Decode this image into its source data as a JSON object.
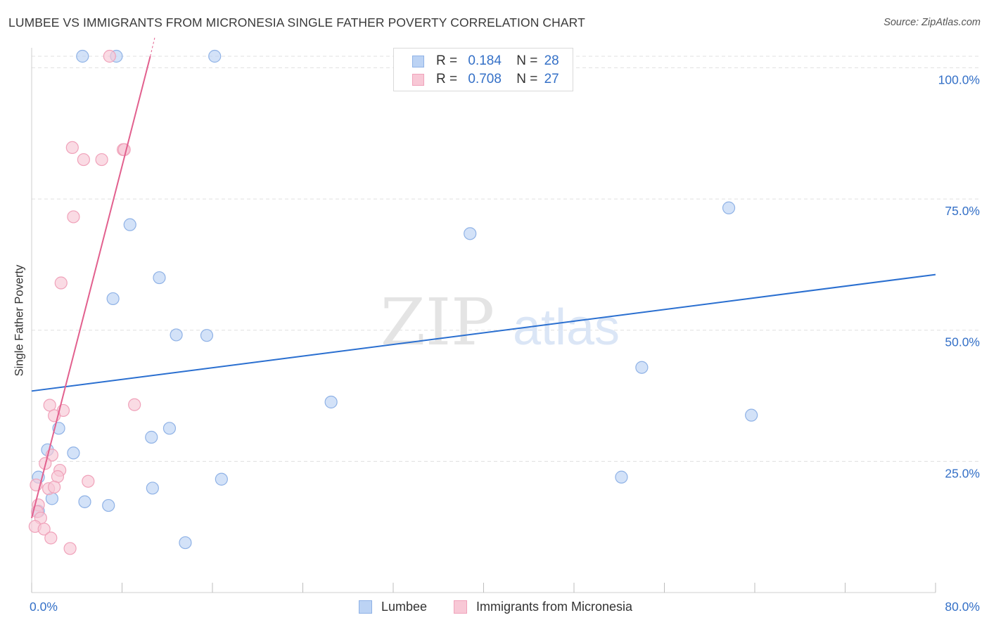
{
  "title": "LUMBEE VS IMMIGRANTS FROM MICRONESIA SINGLE FATHER POVERTY CORRELATION CHART",
  "source": "Source: ZipAtlas.com",
  "watermark": {
    "zip": "ZIP",
    "atlas": "atlas"
  },
  "legend": {
    "r_label": "R =",
    "n_label": "N =",
    "rows": [
      {
        "name": "Lumbee",
        "r": "0.184",
        "n": "28"
      },
      {
        "name": "Immigrants from Micronesia",
        "r": "0.708",
        "n": "27"
      }
    ]
  },
  "colors": {
    "lumbee_fill": "#bcd3f4",
    "lumbee_stroke": "#8fb2e6",
    "lumbee_line": "#2a6fd0",
    "micronesia_fill": "#f8c8d6",
    "micronesia_stroke": "#f0a2ba",
    "micronesia_line": "#e2608e",
    "tick_label": "#3470c7",
    "grid": "#e0e0e0"
  },
  "chart_data": {
    "type": "scatter",
    "title": "LUMBEE VS IMMIGRANTS FROM MICRONESIA SINGLE FATHER POVERTY CORRELATION CHART",
    "xlabel": "",
    "ylabel": "Single Father Poverty",
    "xlim": [
      0,
      80
    ],
    "ylim": [
      0,
      102
    ],
    "x_tick_labels": [
      "0.0%",
      "80.0%"
    ],
    "y_ticks": [
      25,
      50,
      75,
      100
    ],
    "y_tick_labels": [
      "25.0%",
      "50.0%",
      "75.0%",
      "100.0%"
    ],
    "grid": "horizontal dashed",
    "legend_placement": "top-center and bottom",
    "series": [
      {
        "name": "Lumbee",
        "r": 0.184,
        "n": 28,
        "points": [
          [
            4.5,
            102.2
          ],
          [
            7.5,
            102.2
          ],
          [
            16.2,
            102.2
          ],
          [
            42.0,
            102.0
          ],
          [
            8.7,
            70.1
          ],
          [
            38.8,
            68.4
          ],
          [
            61.7,
            73.3
          ],
          [
            11.3,
            60.0
          ],
          [
            7.2,
            56.0
          ],
          [
            12.8,
            49.1
          ],
          [
            15.5,
            49.0
          ],
          [
            54.0,
            42.9
          ],
          [
            26.5,
            36.3
          ],
          [
            63.7,
            33.8
          ],
          [
            2.4,
            31.3
          ],
          [
            12.2,
            31.3
          ],
          [
            10.6,
            29.6
          ],
          [
            1.4,
            27.2
          ],
          [
            3.7,
            26.6
          ],
          [
            0.6,
            22.0
          ],
          [
            52.2,
            22.0
          ],
          [
            16.8,
            21.6
          ],
          [
            10.7,
            19.9
          ],
          [
            1.8,
            17.9
          ],
          [
            4.7,
            17.3
          ],
          [
            6.8,
            16.6
          ],
          [
            0.6,
            15.5
          ],
          [
            13.6,
            9.5
          ]
        ],
        "trend": {
          "x": [
            0,
            80
          ],
          "y": [
            38.4,
            60.6
          ]
        }
      },
      {
        "name": "Immigrants from Micronesia",
        "r": 0.708,
        "n": 27,
        "points": [
          [
            6.9,
            102.2
          ],
          [
            3.6,
            84.8
          ],
          [
            4.6,
            82.5
          ],
          [
            6.2,
            82.5
          ],
          [
            8.1,
            84.4
          ],
          [
            8.2,
            84.4
          ],
          [
            3.7,
            71.6
          ],
          [
            2.6,
            59.0
          ],
          [
            9.1,
            35.8
          ],
          [
            1.6,
            35.7
          ],
          [
            2.8,
            34.7
          ],
          [
            2.0,
            33.7
          ],
          [
            1.8,
            26.2
          ],
          [
            1.2,
            24.6
          ],
          [
            2.5,
            23.3
          ],
          [
            2.3,
            22.1
          ],
          [
            5.0,
            21.2
          ],
          [
            0.4,
            20.5
          ],
          [
            1.5,
            19.8
          ],
          [
            2.0,
            20.1
          ],
          [
            0.6,
            16.7
          ],
          [
            0.5,
            15.4
          ],
          [
            0.8,
            14.2
          ],
          [
            0.3,
            12.6
          ],
          [
            1.1,
            12.1
          ],
          [
            1.7,
            10.4
          ],
          [
            3.4,
            8.4
          ]
        ],
        "trend": {
          "x": [
            0,
            10.5
          ],
          "y": [
            14.2,
            102.2
          ]
        },
        "trend_dashed_extension": {
          "x": [
            10.5,
            10.9
          ],
          "y": [
            102.2,
            105.8
          ]
        }
      }
    ]
  }
}
